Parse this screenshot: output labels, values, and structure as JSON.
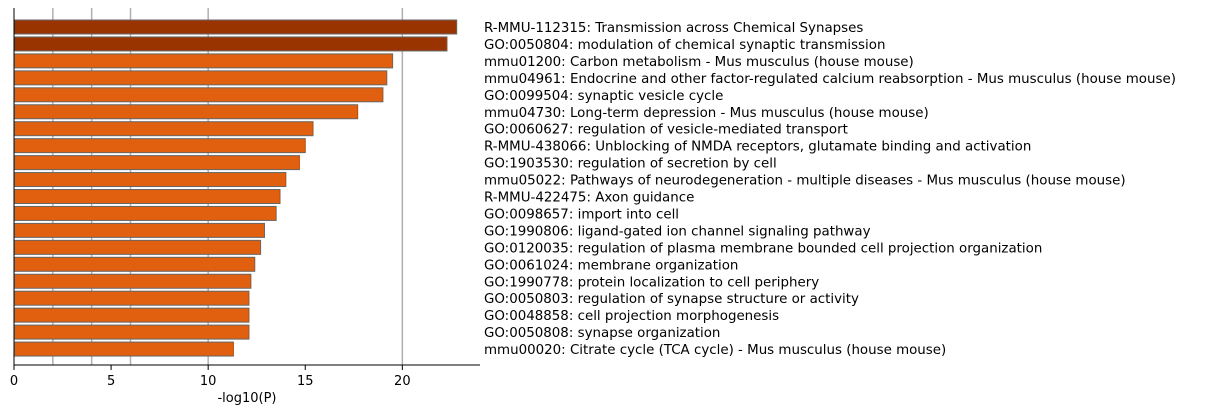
{
  "chart_data": {
    "type": "bar",
    "orientation": "horizontal",
    "title": "",
    "xlabel": "-log10(P)",
    "ylabel": "",
    "xlim": [
      0,
      24
    ],
    "xticks": [
      0,
      5,
      10,
      15,
      20
    ],
    "grid": "vertical lines at 2, 4, 6, 10, 20",
    "legend": "none",
    "colors": {
      "dark": "#993300",
      "medium": "#e0600f",
      "edge": "#666666",
      "grid": "#b0b0b0"
    },
    "categories": [
      "R-MMU-112315: Transmission across Chemical Synapses",
      "GO:0050804: modulation of chemical synaptic transmission",
      "mmu01200: Carbon metabolism - Mus musculus (house mouse)",
      "mmu04961: Endocrine and other factor-regulated calcium reabsorption - Mus musculus (house mouse)",
      "GO:0099504: synaptic vesicle cycle",
      "mmu04730: Long-term depression - Mus musculus (house mouse)",
      "GO:0060627: regulation of vesicle-mediated transport",
      "R-MMU-438066: Unblocking of NMDA receptors, glutamate binding and activation",
      "GO:1903530: regulation of secretion by cell",
      "mmu05022: Pathways of neurodegeneration - multiple diseases - Mus musculus (house mouse)",
      "R-MMU-422475: Axon guidance",
      "GO:0098657: import into cell",
      "GO:1990806: ligand-gated ion channel signaling pathway",
      "GO:0120035: regulation of plasma membrane bounded cell projection organization",
      "GO:0061024: membrane organization",
      "GO:1990778: protein localization to cell periphery",
      "GO:0050803: regulation of synapse structure or activity",
      "GO:0048858: cell projection morphogenesis",
      "GO:0050808: synapse organization",
      "mmu00020: Citrate cycle (TCA cycle) - Mus musculus (house mouse)"
    ],
    "values": [
      22.8,
      22.3,
      19.5,
      19.2,
      19.0,
      17.7,
      15.4,
      15.0,
      14.7,
      14.0,
      13.7,
      13.5,
      12.9,
      12.7,
      12.4,
      12.2,
      12.1,
      12.1,
      12.1,
      11.3
    ],
    "bar_color_group": [
      "dark",
      "dark",
      "medium",
      "medium",
      "medium",
      "medium",
      "medium",
      "medium",
      "medium",
      "medium",
      "medium",
      "medium",
      "medium",
      "medium",
      "medium",
      "medium",
      "medium",
      "medium",
      "medium",
      "medium"
    ]
  }
}
